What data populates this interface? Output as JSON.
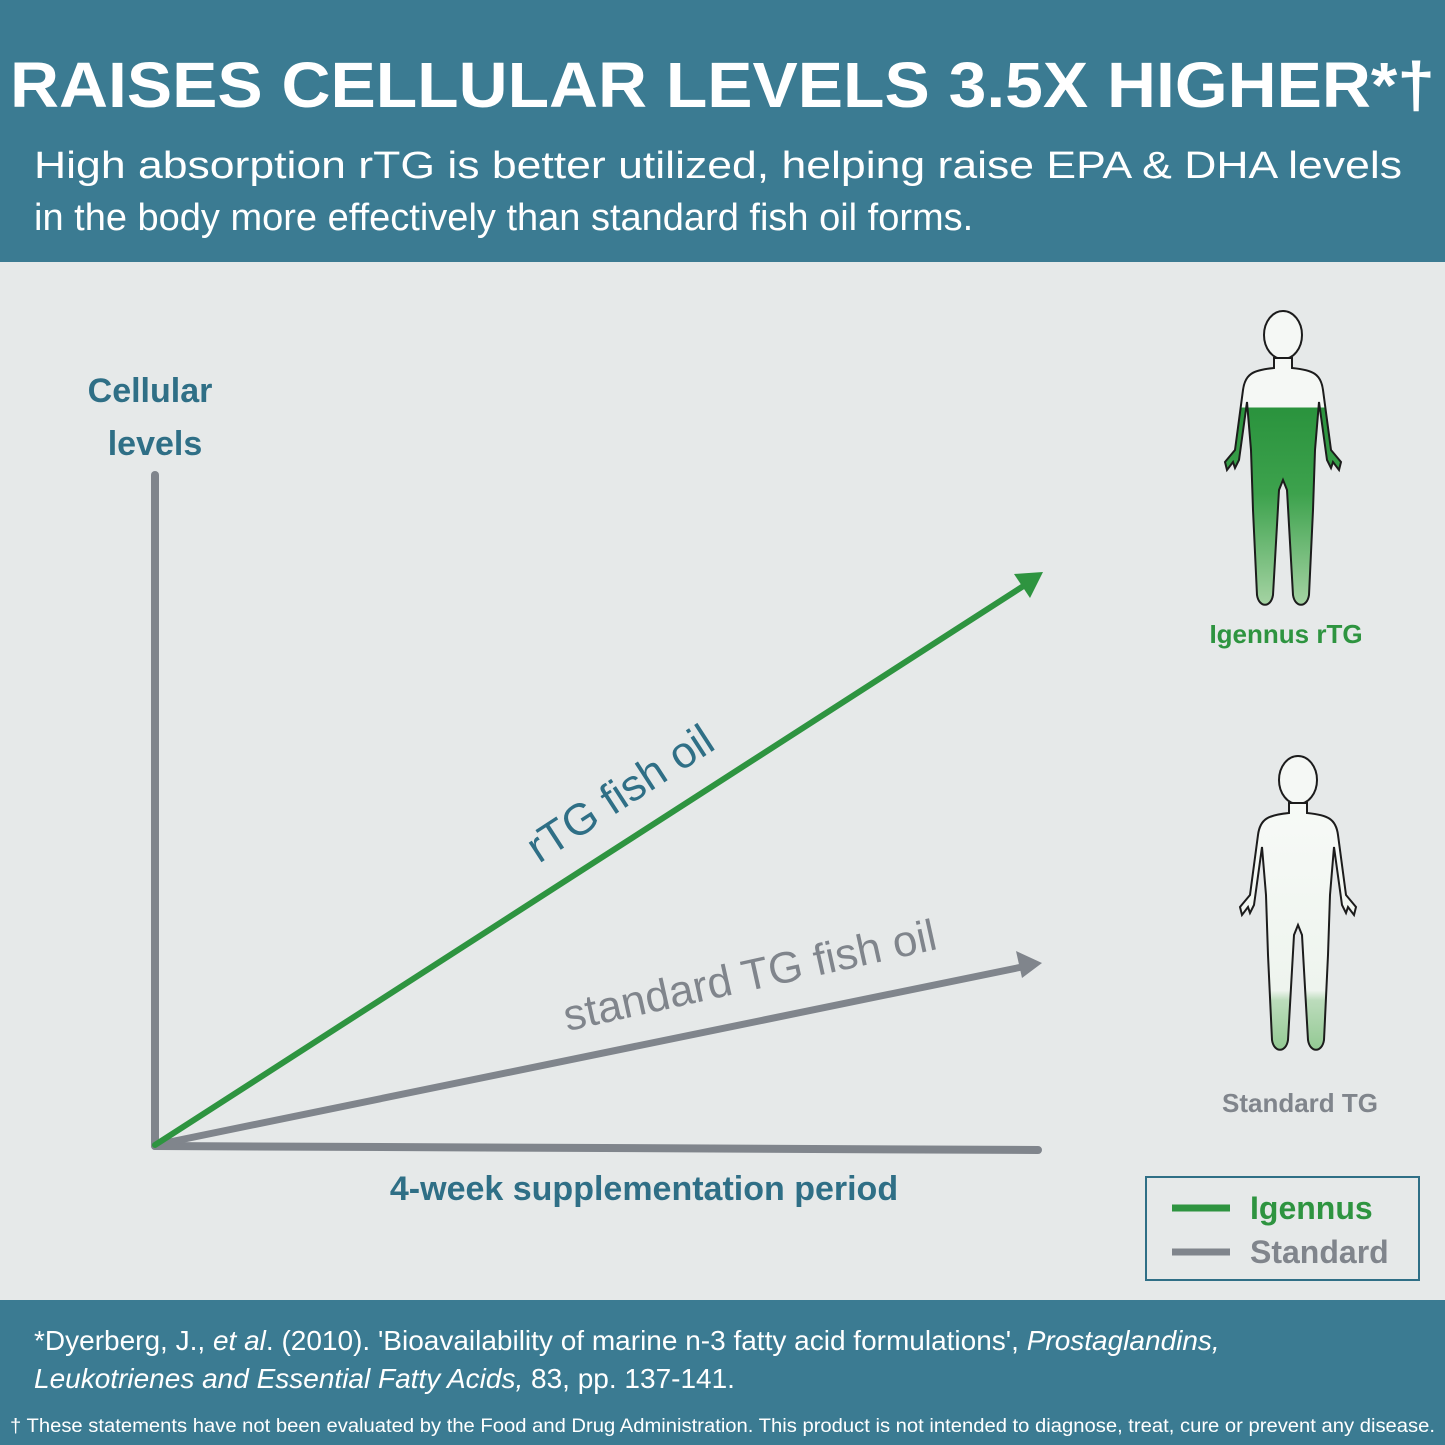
{
  "header": {
    "title": "RAISES CELLULAR LEVELS 3.5X HIGHER*†",
    "subtitle": [
      "High absorption rTG is better utilized, helping raise EPA & DHA levels",
      "in the body more effectively than standard fish oil forms."
    ]
  },
  "diagram": {
    "y_axis_label": [
      "Cellular",
      "levels"
    ],
    "x_axis_label": "4-week supplementation period",
    "lines": [
      {
        "label": "rTG fish oil"
      },
      {
        "label": "standard TG fish oil"
      }
    ],
    "figures": [
      {
        "label": "Igennus rTG"
      },
      {
        "label": "Standard TG"
      }
    ],
    "legend": [
      "Igennus",
      "Standard"
    ]
  },
  "footer": {
    "citation": [
      "*Dyerberg, J., ",
      "et al",
      ". (2010). 'Bioavailability of marine n-3 fatty acid formulations', ",
      "Prostaglandins,",
      "Leukotrienes and Essential Fatty Acids,",
      " 83, pp. 137-141."
    ],
    "disclaimer": "† These statements have not been evaluated by the Food and Drug Administration. This product is not intended to diagnose, treat, cure or prevent any disease."
  }
}
